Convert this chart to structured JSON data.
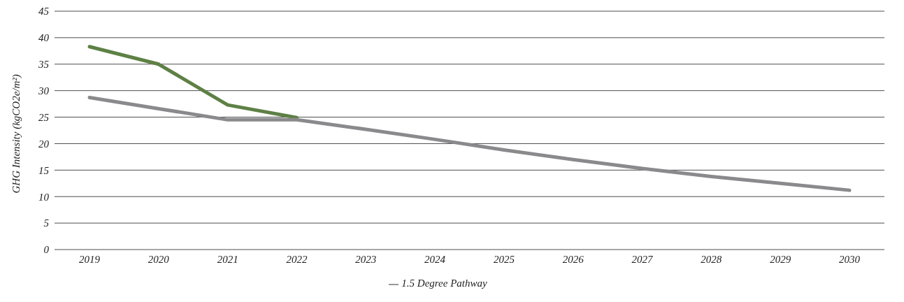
{
  "chart_data": {
    "type": "line",
    "ylabel": "GHG Intensity (kgCO2e/m²)",
    "categories": [
      "2019",
      "2020",
      "2021",
      "2022",
      "2023",
      "2024",
      "2025",
      "2026",
      "2027",
      "2028",
      "2029",
      "2030"
    ],
    "series": [
      {
        "color": "#5e8045",
        "values": [
          38.3,
          35,
          27.3,
          24.9,
          null,
          null,
          null,
          null,
          null,
          null,
          null,
          null
        ]
      },
      {
        "name": "1.5 Degree Pathway",
        "color": "#8a8a8d",
        "values": [
          28.7,
          26.6,
          24.5,
          24.5,
          22.7,
          20.8,
          18.8,
          17,
          15.3,
          13.8,
          12.5,
          11.2
        ]
      }
    ],
    "ylim": [
      0,
      45
    ],
    "yticks": [
      0,
      5,
      10,
      15,
      20,
      25,
      30,
      35,
      40,
      45
    ],
    "grid": "y",
    "legend": "bottom",
    "marker": "none",
    "line_style": "solid"
  }
}
